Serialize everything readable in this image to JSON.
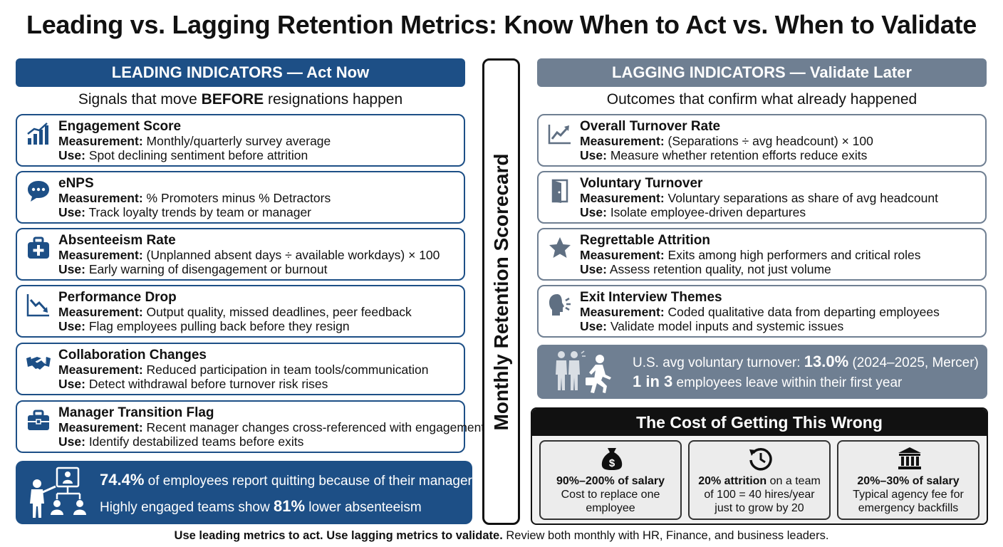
{
  "title": "Leading vs. Lagging Retention Metrics: Know When to Act vs. When to Validate",
  "leading": {
    "header": "LEADING INDICATORS — Act Now",
    "subtitle_pre": "Signals that move ",
    "subtitle_bold": "BEFORE",
    "subtitle_post": " resignations happen",
    "cards": [
      {
        "icon": "bar-chart-icon",
        "title": "Engagement Score",
        "measurement": "Monthly/quarterly survey average",
        "use": "Spot declining sentiment before attrition"
      },
      {
        "icon": "chat-bubble-icon",
        "title": "eNPS",
        "measurement": "% Promoters minus % Detractors",
        "use": "Track loyalty trends by team or manager"
      },
      {
        "icon": "medical-kit-icon",
        "title": "Absenteeism Rate",
        "measurement": "(Unplanned absent days ÷ available workdays) × 100",
        "use": "Early warning of disengagement or burnout"
      },
      {
        "icon": "trend-down-icon",
        "title": "Performance Drop",
        "measurement": "Output quality, missed deadlines, peer feedback",
        "use": "Flag employees pulling back before they resign"
      },
      {
        "icon": "handshake-icon",
        "title": "Collaboration Changes",
        "measurement": "Reduced participation in team tools/communication",
        "use": "Detect withdrawal before turnover risk rises"
      },
      {
        "icon": "briefcase-icon",
        "title": "Manager Transition Flag",
        "measurement": "Recent manager changes cross-referenced with engagement",
        "use": "Identify destabilized teams before exits"
      }
    ],
    "stat": {
      "line1_bold": "74.4%",
      "line1_rest": " of employees report quitting because of their manager",
      "line2_pre": "Highly engaged teams show ",
      "line2_bold": "81%",
      "line2_post": " lower absenteeism"
    }
  },
  "scorecard_label": "Monthly Retention Scorecard",
  "lagging": {
    "header": "LAGGING INDICATORS — Validate Later",
    "subtitle": "Outcomes that confirm what already happened",
    "cards": [
      {
        "icon": "trend-up-icon",
        "title": "Overall Turnover Rate",
        "measurement": "(Separations ÷ avg headcount) × 100",
        "use": "Measure whether retention efforts reduce exits"
      },
      {
        "icon": "door-icon",
        "title": "Voluntary Turnover",
        "measurement": "Voluntary separations as share of avg headcount",
        "use": "Isolate employee-driven departures"
      },
      {
        "icon": "star-icon",
        "title": "Regrettable Attrition",
        "measurement": "Exits among high performers and critical roles",
        "use": "Assess retention quality, not just volume"
      },
      {
        "icon": "speaking-head-icon",
        "title": "Exit Interview Themes",
        "measurement": "Coded qualitative data from departing employees",
        "use": "Validate model inputs and systemic issues"
      }
    ],
    "stat": {
      "line1_pre": "U.S. avg voluntary turnover: ",
      "line1_bold": "13.0%",
      "line1_post": " (2024–2025, Mercer)",
      "line2_bold": "1 in 3",
      "line2_post": " employees leave within their first year"
    }
  },
  "labels": {
    "measurement": "Measurement:",
    "use": "Use:"
  },
  "cost": {
    "header": "The Cost of Getting This Wrong",
    "boxes": [
      {
        "icon": "money-bag-icon",
        "bold": "90%–200% of salary",
        "line2": "Cost to replace one",
        "line3": "employee"
      },
      {
        "icon": "history-clock-icon",
        "bold": "20% attrition",
        "bold_rest": " on a team",
        "line2": "of 100 = 40 hires/year",
        "line3": "just to grow by 20"
      },
      {
        "icon": "bank-icon",
        "bold": "20%–30% of salary",
        "line2": "Typical agency fee for",
        "line3": "emergency backfills"
      }
    ]
  },
  "footer": {
    "bold": "Use leading metrics to act. Use lagging metrics to validate.",
    "rest": " Review both monthly with HR, Finance, and business leaders."
  },
  "colors": {
    "leading_blue": "#1d4f86",
    "lagging_gray": "#6f7f92",
    "black": "#111111"
  }
}
